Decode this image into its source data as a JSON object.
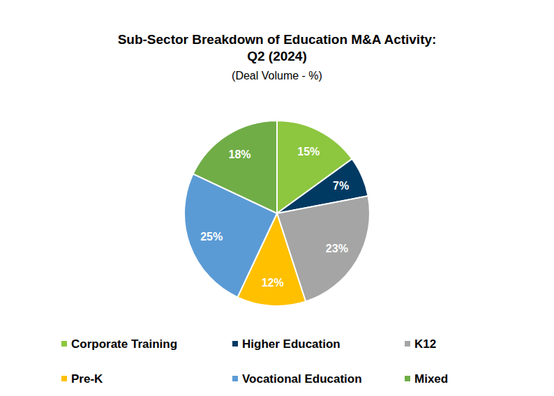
{
  "chart_data": {
    "type": "pie",
    "title": "Sub-Sector Breakdown of Education M&A Activity:\nQ2 (2024)",
    "subtitle": "(Deal Volume - %)",
    "categories": [
      "Corporate Training",
      "Higher Education",
      "K12",
      "Pre-K",
      "Vocational Education",
      "Mixed"
    ],
    "values": [
      15,
      7,
      23,
      12,
      25,
      18
    ],
    "value_labels": [
      "15%",
      "7%",
      "23%",
      "12%",
      "25%",
      "18%"
    ],
    "colors": [
      "#8dc63f",
      "#003a63",
      "#a5a5a5",
      "#ffc000",
      "#5b9bd5",
      "#70ad47"
    ],
    "data_labels": true,
    "legend": "bottom"
  }
}
